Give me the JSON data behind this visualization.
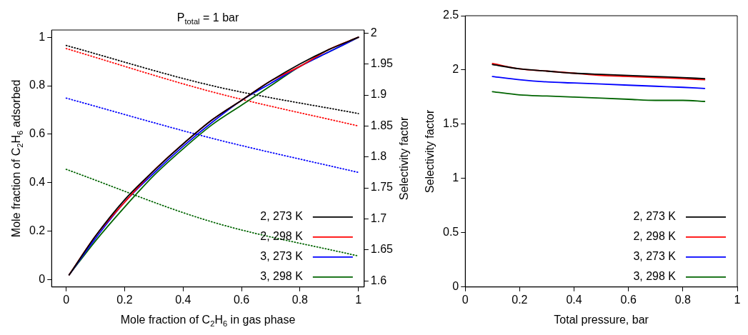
{
  "chart_data": [
    {
      "type": "line",
      "title": "P$_{total}$ = 1 bar",
      "xlabel": "Mole fraction of C$_{2}$H$_{6}$ in gas phase",
      "ylabel": "Mole fraction of C$_{2}$H$_{6}$ adsorbed",
      "y2label": "Selectivity factor",
      "xlim": [
        -0.05,
        1.02
      ],
      "xticks": [
        0,
        0.2,
        0.4,
        0.6,
        0.8,
        1
      ],
      "ylim": [
        -0.03,
        1.03
      ],
      "yticks": [
        0,
        0.2,
        0.4,
        0.6,
        0.8,
        1
      ],
      "y2lim": [
        1.59,
        2.005
      ],
      "y2ticks": [
        1.6,
        1.65,
        1.7,
        1.75,
        1.8,
        1.85,
        1.9,
        1.95,
        2
      ],
      "grid": false,
      "legend": "bottom right",
      "marker": "none",
      "series": [
        {
          "name": "2, 273 K",
          "color": "#000000",
          "x": [
            0.01,
            0.1,
            0.2,
            0.3,
            0.4,
            0.5,
            0.6,
            0.7,
            0.8,
            0.9,
            1
          ],
          "values": [
            0.02,
            0.18,
            0.33,
            0.45,
            0.56,
            0.66,
            0.74,
            0.82,
            0.89,
            0.95,
            1
          ]
        },
        {
          "name": "2, 298 K",
          "color": "#ff0000",
          "x": [
            0.01,
            0.1,
            0.2,
            0.3,
            0.4,
            0.5,
            0.6,
            0.7,
            0.8,
            0.9,
            1
          ],
          "values": [
            0.02,
            0.18,
            0.32,
            0.45,
            0.56,
            0.66,
            0.74,
            0.82,
            0.88,
            0.95,
            1
          ]
        },
        {
          "name": "3, 273 K",
          "color": "#0000ff",
          "x": [
            0.01,
            0.1,
            0.2,
            0.3,
            0.4,
            0.5,
            0.6,
            0.7,
            0.8,
            0.9,
            1
          ],
          "values": [
            0.02,
            0.17,
            0.32,
            0.44,
            0.55,
            0.65,
            0.74,
            0.81,
            0.88,
            0.94,
            1
          ]
        },
        {
          "name": "3, 298 K",
          "color": "#006400",
          "x": [
            0.01,
            0.1,
            0.2,
            0.3,
            0.4,
            0.5,
            0.6,
            0.7,
            0.8,
            0.9,
            1
          ],
          "values": [
            0.02,
            0.16,
            0.3,
            0.43,
            0.54,
            0.64,
            0.72,
            0.8,
            0.88,
            0.94,
            1
          ]
        },
        {
          "color": "#000000",
          "axis": "y2",
          "line_style": "dotted",
          "x": [
            0,
            0.5,
            1
          ],
          "values": [
            1.98,
            1.915,
            1.87
          ]
        },
        {
          "color": "#ff0000",
          "axis": "y2",
          "line_style": "dotted",
          "x": [
            0,
            0.5,
            1
          ],
          "values": [
            1.975,
            1.905,
            1.85
          ]
        },
        {
          "color": "#0000ff",
          "axis": "y2",
          "line_style": "dotted",
          "x": [
            0,
            0.5,
            1
          ],
          "values": [
            1.895,
            1.83,
            1.775
          ]
        },
        {
          "color": "#006400",
          "axis": "y2",
          "line_style": "dotted",
          "x": [
            0,
            0.5,
            1
          ],
          "values": [
            1.78,
            1.695,
            1.64
          ]
        }
      ]
    },
    {
      "type": "line",
      "xlabel": "Total pressure, bar",
      "ylabel": "Selectivity factor",
      "xlim": [
        0,
        1
      ],
      "xticks": [
        0,
        0.2,
        0.4,
        0.6,
        0.8,
        1
      ],
      "ylim": [
        0,
        2.5
      ],
      "yticks": [
        0,
        0.5,
        1,
        1.5,
        2,
        2.5
      ],
      "grid": false,
      "legend": "bottom right",
      "marker": "none",
      "series": [
        {
          "name": "2, 273 K",
          "color": "#000000",
          "x": [
            0.1,
            0.2,
            0.3,
            0.4,
            0.5,
            0.6,
            0.7,
            0.8,
            0.88
          ],
          "values": [
            2.05,
            2.01,
            1.99,
            1.97,
            1.96,
            1.95,
            1.94,
            1.93,
            1.92
          ]
        },
        {
          "name": "2, 298 K",
          "color": "#ff0000",
          "x": [
            0.1,
            0.2,
            0.3,
            0.4,
            0.5,
            0.6,
            0.7,
            0.8,
            0.88
          ],
          "values": [
            2.06,
            2.01,
            1.99,
            1.97,
            1.95,
            1.94,
            1.93,
            1.92,
            1.91
          ]
        },
        {
          "name": "3, 273 K",
          "color": "#0000ff",
          "x": [
            0.1,
            0.2,
            0.3,
            0.4,
            0.5,
            0.6,
            0.7,
            0.8,
            0.88
          ],
          "values": [
            1.94,
            1.91,
            1.89,
            1.88,
            1.87,
            1.86,
            1.85,
            1.84,
            1.83
          ]
        },
        {
          "name": "3, 298 K",
          "color": "#006400",
          "x": [
            0.1,
            0.2,
            0.3,
            0.4,
            0.5,
            0.6,
            0.7,
            0.8,
            0.88
          ],
          "values": [
            1.8,
            1.77,
            1.76,
            1.75,
            1.74,
            1.73,
            1.72,
            1.72,
            1.71
          ]
        }
      ]
    }
  ]
}
